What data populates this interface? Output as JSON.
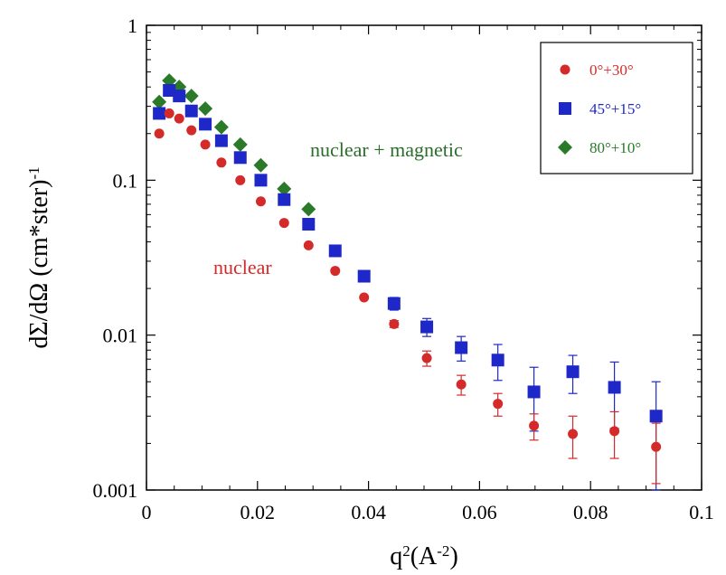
{
  "chart_data": {
    "type": "scatter",
    "xlabel_base": "q",
    "xlabel_sup": "2",
    "xlabel_unit_base": "(A",
    "xlabel_unit_sup": "-2",
    "xlabel_unit_close": ")",
    "ylabel_base": "dΣ/dΩ (cm*ster)",
    "ylabel_sup": "-1",
    "x_ticks": [
      "0",
      "0.02",
      "0.04",
      "0.06",
      "0.08",
      "0.1"
    ],
    "y_ticks": [
      "0.001",
      "0.01",
      "0.1",
      "1"
    ],
    "xlim": [
      0,
      0.1
    ],
    "ylim": [
      0.001,
      1
    ],
    "y_scale": "log",
    "grid": false,
    "legend_position": "top-right",
    "annotations": [
      {
        "text": "nuclear + magnetic",
        "color": "#2a6e2a"
      },
      {
        "text": "nuclear",
        "color": "#d42a2a"
      }
    ],
    "series": [
      {
        "name": "0°+30°",
        "marker": "circle",
        "color": "#d42a2a",
        "x": [
          0.0023,
          0.0041,
          0.0059,
          0.0081,
          0.0106,
          0.0135,
          0.0169,
          0.0206,
          0.0248,
          0.0292,
          0.034,
          0.0392,
          0.0446,
          0.0505,
          0.0567,
          0.0633,
          0.0698,
          0.0768,
          0.0843,
          0.0918
        ],
        "y": [
          0.2,
          0.27,
          0.25,
          0.21,
          0.17,
          0.13,
          0.1,
          0.073,
          0.053,
          0.038,
          0.026,
          0.0175,
          0.0118,
          0.0071,
          0.0048,
          0.0036,
          0.0026,
          0.0023,
          0.0024,
          0.0019
        ],
        "err": [
          0,
          0,
          0,
          0,
          0,
          0,
          0,
          0,
          0,
          0,
          0,
          0,
          0.0006,
          0.0008,
          0.0007,
          0.0006,
          0.0005,
          0.0007,
          0.0008,
          0.0008
        ]
      },
      {
        "name": "45°+15°",
        "marker": "square",
        "color": "#1e28c8",
        "x": [
          0.0023,
          0.0041,
          0.0059,
          0.0081,
          0.0106,
          0.0135,
          0.0169,
          0.0206,
          0.0248,
          0.0292,
          0.034,
          0.0392,
          0.0446,
          0.0505,
          0.0567,
          0.0633,
          0.0698,
          0.0768,
          0.0843,
          0.0918
        ],
        "y": [
          0.27,
          0.38,
          0.35,
          0.28,
          0.23,
          0.18,
          0.14,
          0.1,
          0.075,
          0.052,
          0.035,
          0.024,
          0.016,
          0.0113,
          0.0083,
          0.0069,
          0.0043,
          0.0058,
          0.0046,
          0.003
        ],
        "err": [
          0,
          0,
          0,
          0,
          0,
          0,
          0,
          0,
          0,
          0,
          0,
          0,
          0.0015,
          0.0015,
          0.0015,
          0.0018,
          0.0019,
          0.0016,
          0.0021,
          0.002
        ]
      },
      {
        "name": "80°+10°",
        "marker": "diamond",
        "color": "#2a7a2a",
        "x": [
          0.0023,
          0.0041,
          0.0059,
          0.0081,
          0.0106,
          0.0135,
          0.0169,
          0.0206,
          0.0248,
          0.0292
        ],
        "y": [
          0.32,
          0.44,
          0.4,
          0.35,
          0.29,
          0.22,
          0.17,
          0.125,
          0.088,
          0.065
        ],
        "err": [
          0,
          0,
          0,
          0,
          0,
          0,
          0,
          0,
          0,
          0
        ]
      }
    ]
  }
}
